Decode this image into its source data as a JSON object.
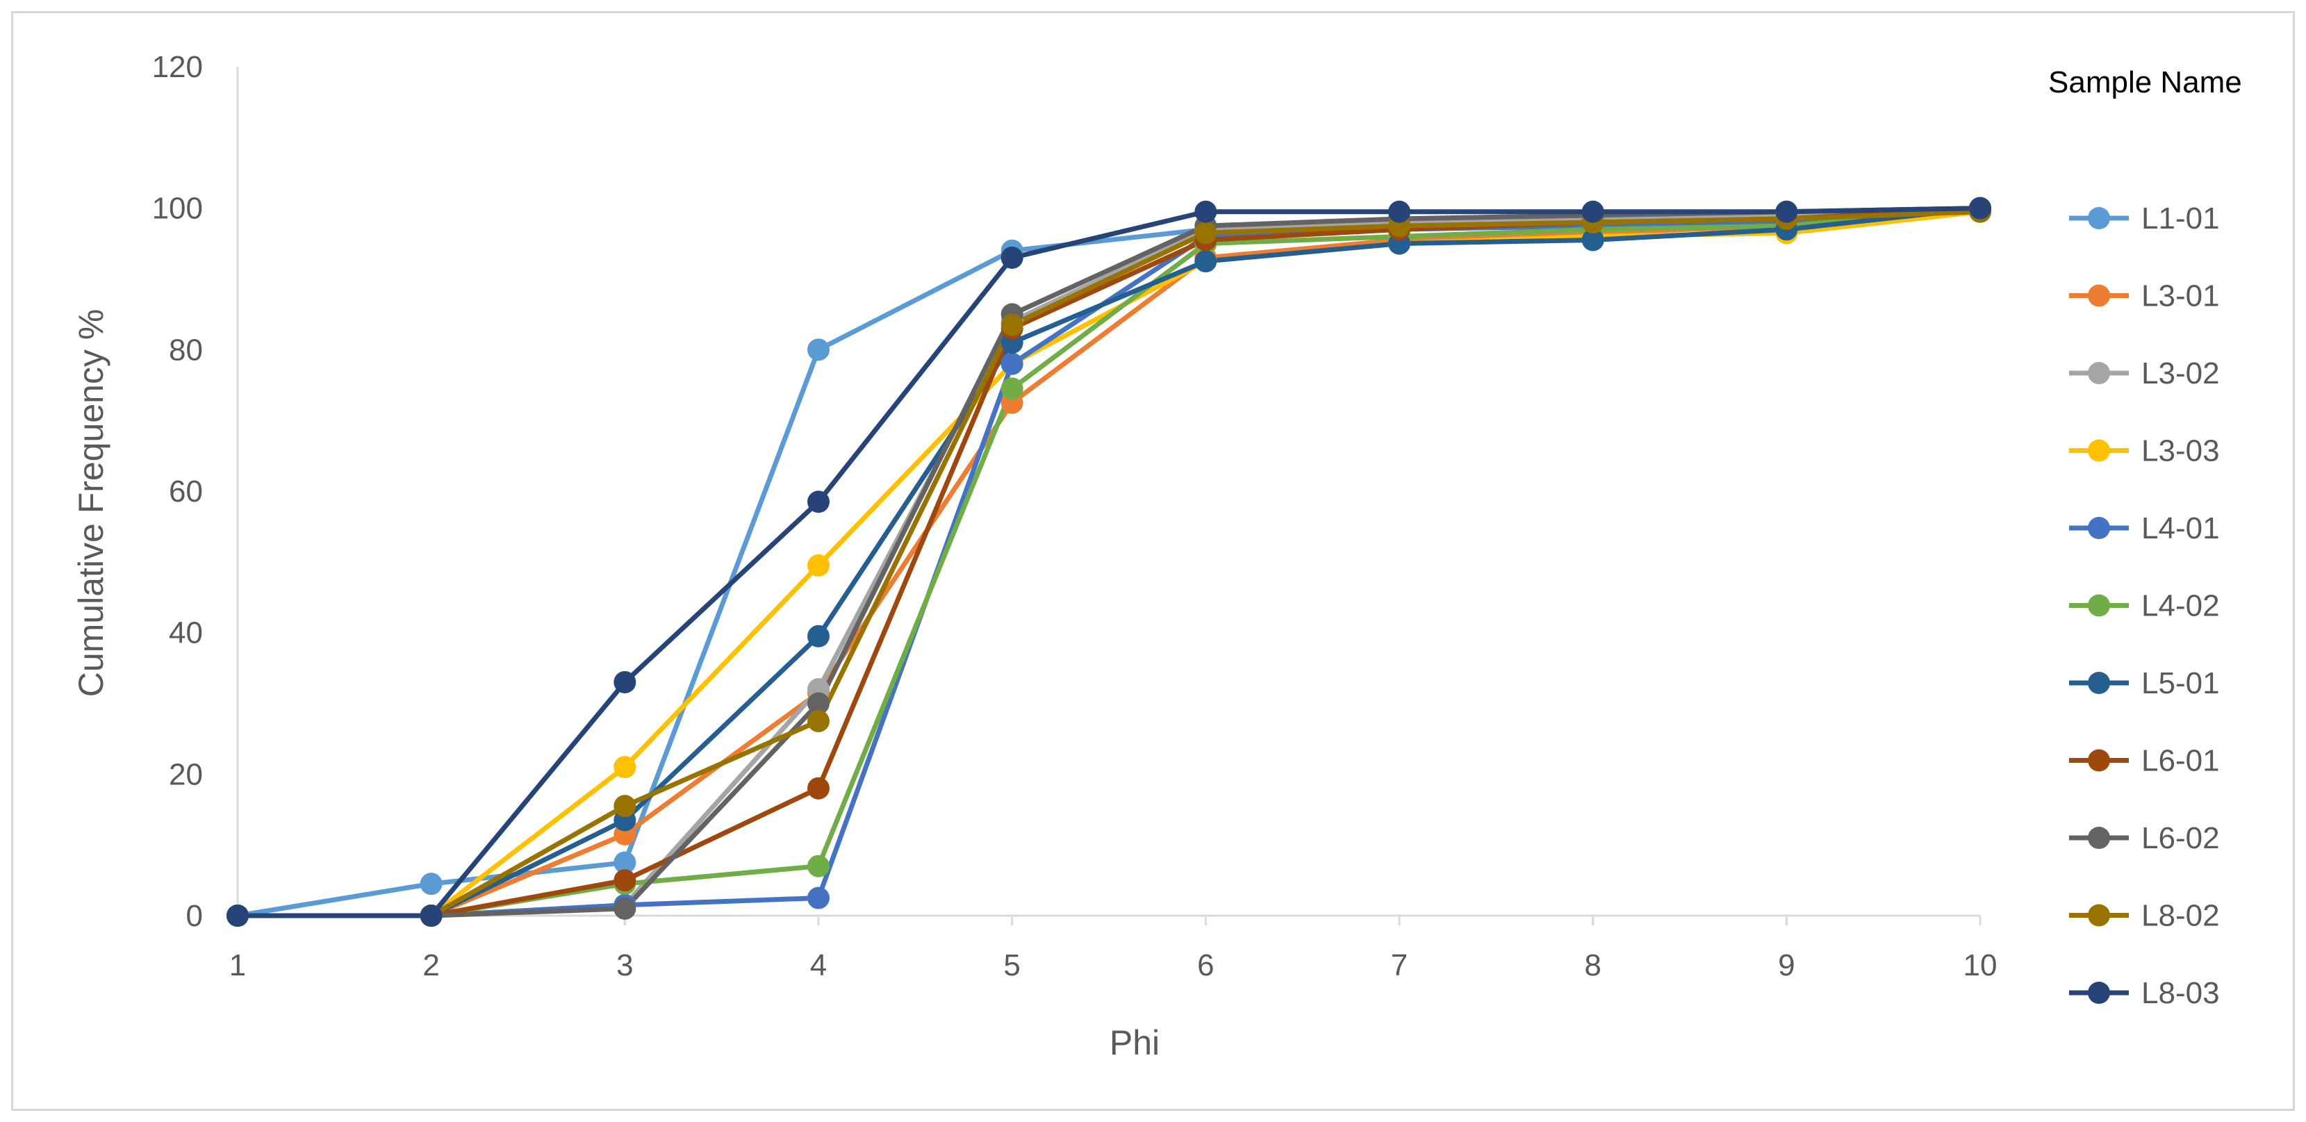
{
  "chart_data": {
    "type": "line",
    "xlabel": "Phi",
    "ylabel": "Cumulative Frequency %",
    "legend_title": "Sample Name",
    "legend_position": "right",
    "grid": false,
    "xlim": [
      1,
      10
    ],
    "ylim": [
      0,
      120
    ],
    "x": [
      1,
      2,
      3,
      4,
      5,
      6,
      7,
      8,
      9,
      10
    ],
    "yticks": [
      0,
      20,
      40,
      60,
      80,
      100,
      120
    ],
    "series": [
      {
        "name": "L1-01",
        "color": "#5b9bd5",
        "values": [
          0,
          4.5,
          7.5,
          80,
          94,
          97,
          98,
          98.5,
          99,
          100
        ]
      },
      {
        "name": "L3-01",
        "color": "#ed7d31",
        "values": [
          0,
          0,
          11.5,
          31.5,
          72.5,
          93,
          95.5,
          96.5,
          97.5,
          99.5
        ]
      },
      {
        "name": "L3-02",
        "color": "#a5a5a5",
        "values": [
          0,
          0,
          1.5,
          32,
          84,
          97,
          98,
          98.5,
          99,
          100
        ]
      },
      {
        "name": "L3-03",
        "color": "#ffc000",
        "values": [
          0,
          0,
          21,
          49.5,
          78,
          92.5,
          95,
          96,
          96.5,
          99.5
        ]
      },
      {
        "name": "L4-01",
        "color": "#4472c4",
        "values": [
          0,
          0,
          1.5,
          2.5,
          78,
          96,
          97,
          97.5,
          98,
          100
        ]
      },
      {
        "name": "L4-02",
        "color": "#70ad47",
        "values": [
          0,
          0,
          4.5,
          7,
          74.5,
          95,
          96,
          97,
          97.5,
          100
        ]
      },
      {
        "name": "L5-01",
        "color": "#255e91",
        "values": [
          0,
          0,
          13.5,
          39.5,
          81,
          92.5,
          95,
          95.5,
          97,
          100
        ]
      },
      {
        "name": "L6-01",
        "color": "#9e480e",
        "values": [
          0,
          0,
          5,
          18,
          83,
          95.5,
          97,
          98,
          98.5,
          100
        ]
      },
      {
        "name": "L6-02",
        "color": "#636363",
        "values": [
          0,
          0,
          1,
          30,
          85,
          97.5,
          98.5,
          99,
          99.5,
          100
        ]
      },
      {
        "name": "L8-02",
        "color": "#997300",
        "values": [
          0,
          0,
          15.5,
          27.5,
          83.5,
          96.5,
          97.5,
          98,
          98.5,
          99.5
        ]
      },
      {
        "name": "L8-03",
        "color": "#264478",
        "values": [
          0,
          0,
          33,
          58.5,
          93,
          99.5,
          99.5,
          99.5,
          99.5,
          100
        ]
      }
    ]
  }
}
